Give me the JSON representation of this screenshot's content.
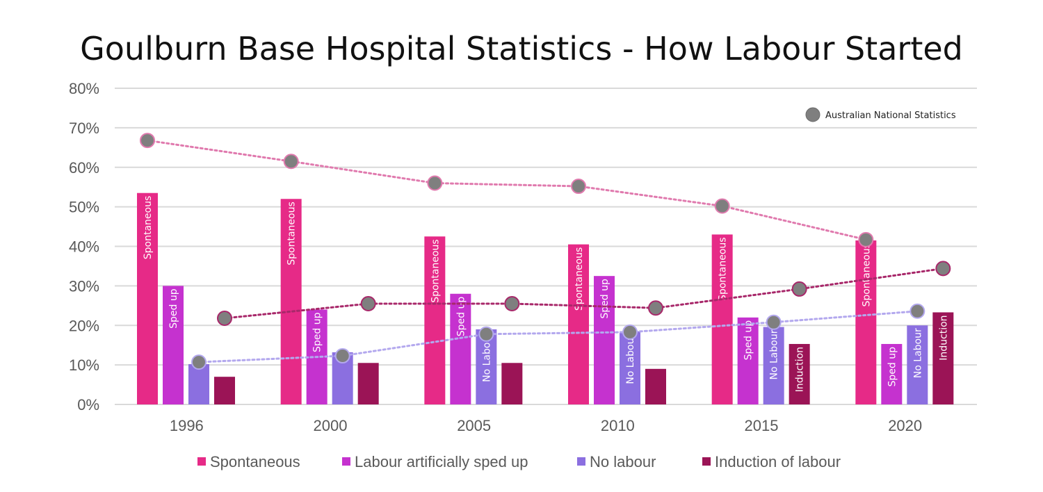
{
  "chart_data": {
    "type": "bar",
    "title": "Goulburn Base Hospital Statistics   - How Labour Started",
    "categories": [
      "1996",
      "2000",
      "2005",
      "2010",
      "2015",
      "2020"
    ],
    "ylim": [
      0,
      80
    ],
    "yticks": [
      "0%",
      "10%",
      "20%",
      "30%",
      "40%",
      "50%",
      "60%",
      "70%",
      "80%"
    ],
    "grid": true,
    "legend_position": "bottom",
    "series": [
      {
        "name": "Spontaneous",
        "color": "#E62A87",
        "values": [
          53.5,
          52,
          42.5,
          40.5,
          43,
          41.5
        ],
        "bar_labels": [
          "Spontaneous",
          "Spontaneous",
          "Spontaneous",
          "Spontaneous",
          "Spontaneous",
          "Spontaneous"
        ]
      },
      {
        "name": "Labour artificially sped up",
        "color": "#C532CF",
        "values": [
          30,
          24,
          28,
          32.5,
          22,
          15.3
        ],
        "bar_labels": [
          "Sped up",
          "Sped up",
          "Sped up",
          "Sped up",
          "Sped up",
          "Sped up"
        ]
      },
      {
        "name": "No labour",
        "color": "#8B6FE0",
        "values": [
          10.2,
          13.2,
          19,
          18.5,
          19.6,
          20
        ],
        "bar_labels": [
          "",
          "",
          "No Labour",
          "No Labour",
          "No Labour",
          "No Labour"
        ]
      },
      {
        "name": "Induction of labour",
        "color": "#9B1456",
        "values": [
          7,
          10.5,
          10.5,
          9,
          15.3,
          23.3
        ],
        "bar_labels": [
          "",
          "",
          "",
          "",
          "Induction",
          "Induction"
        ]
      }
    ],
    "national": {
      "name": "Australian National Statistics",
      "marker_color": "#7F7F7F",
      "lines": [
        {
          "series": "Spontaneous",
          "line_color": "#E07AAE",
          "values": [
            66.8,
            61.5,
            56,
            55.2,
            50.2,
            41.7
          ]
        },
        {
          "series": "Induction of labour",
          "line_color": "#A8286A",
          "values": [
            21.8,
            25.5,
            25.5,
            24.4,
            29.2,
            34.4
          ]
        },
        {
          "series": "No labour",
          "line_color": "#B3A8EE",
          "values": [
            10.7,
            12.3,
            17.8,
            18.3,
            20.8,
            23.6
          ]
        }
      ]
    }
  }
}
